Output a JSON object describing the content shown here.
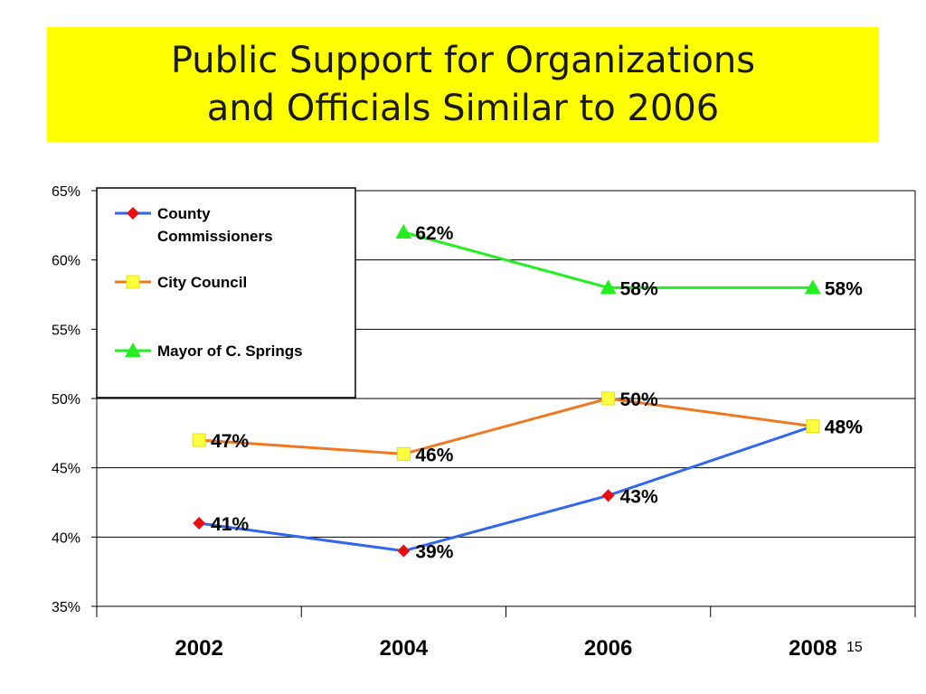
{
  "title": "Public Support for Organizations\nand Officials Similar to 2006",
  "slide_number": "15",
  "chart_data": {
    "type": "line",
    "title": "",
    "xlabel": "",
    "ylabel": "",
    "categories": [
      "2002",
      "2004",
      "2006",
      "2008"
    ],
    "ylim": [
      35,
      65
    ],
    "yticks": [
      "35%",
      "40%",
      "45%",
      "50%",
      "55%",
      "60%",
      "65%"
    ],
    "ytick_values": [
      35,
      40,
      45,
      50,
      55,
      60,
      65
    ],
    "grid": true,
    "legend_position": "top-left",
    "series": [
      {
        "name": "County Commissioners",
        "values": [
          41,
          39,
          43,
          48
        ],
        "labels": [
          "41%",
          "39%",
          "43%",
          "48%"
        ],
        "color": "#3366ee",
        "marker": "diamond",
        "marker_color": "#e81010"
      },
      {
        "name": "City Council",
        "values": [
          47,
          46,
          50,
          48
        ],
        "labels": [
          "47%",
          "46%",
          "50%",
          "48%"
        ],
        "color": "#f07820",
        "marker": "square",
        "marker_color": "#ffff40"
      },
      {
        "name": "Mayor of C. Springs",
        "values": [
          null,
          62,
          58,
          58
        ],
        "labels": [
          "",
          "62%",
          "58%",
          "58%"
        ],
        "color": "#22ee22",
        "marker": "triangle",
        "marker_color": "#22ee22"
      }
    ]
  }
}
